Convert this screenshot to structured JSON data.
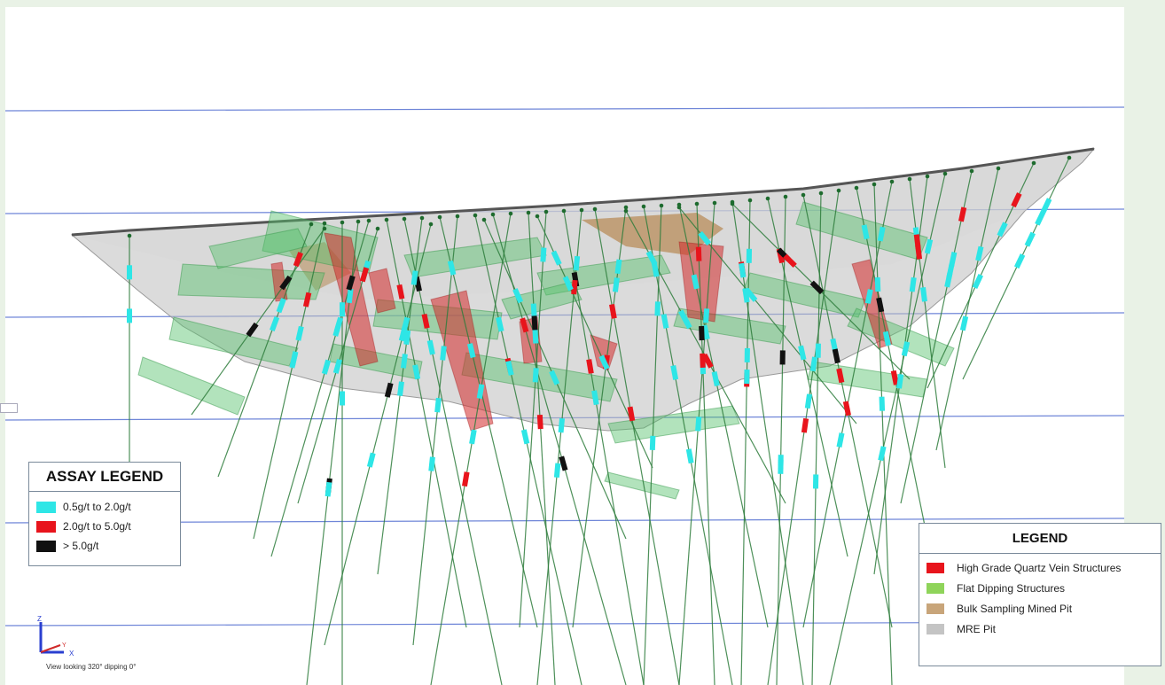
{
  "assay_legend": {
    "title": "ASSAY LEGEND",
    "items": [
      {
        "label": "0.5g/t to 2.0g/t",
        "color": "#2ee6e6"
      },
      {
        "label": "2.0g/t to 5.0g/t",
        "color": "#e8141c"
      },
      {
        "label": "> 5.0g/t",
        "color": "#111111"
      }
    ]
  },
  "legend": {
    "title": "LEGEND",
    "items": [
      {
        "label": "High Grade Quartz Vein Structures",
        "color": "#e8141c"
      },
      {
        "label": "Flat Dipping Structures",
        "color": "#8fd45a"
      },
      {
        "label": "Bulk Sampling Mined Pit",
        "color": "#c8a57a"
      },
      {
        "label": "MRE Pit",
        "color": "#c4c4c4"
      }
    ]
  },
  "view": {
    "orientation_text": "View looking 320° dipping 0°",
    "axis_z": "Z",
    "axis_x": "X",
    "axis_y": "Y"
  },
  "colors": {
    "grid_line": "#6f86d8",
    "drillhole": "#2e7d3c",
    "collar": "#1e6b2e",
    "pit_fill": "#bdbdbd",
    "pit_outline": "#555555",
    "flat_structure": "#55c26a",
    "quartz_vein": "#d42a2a",
    "bulk_pit": "#b07a3a"
  }
}
